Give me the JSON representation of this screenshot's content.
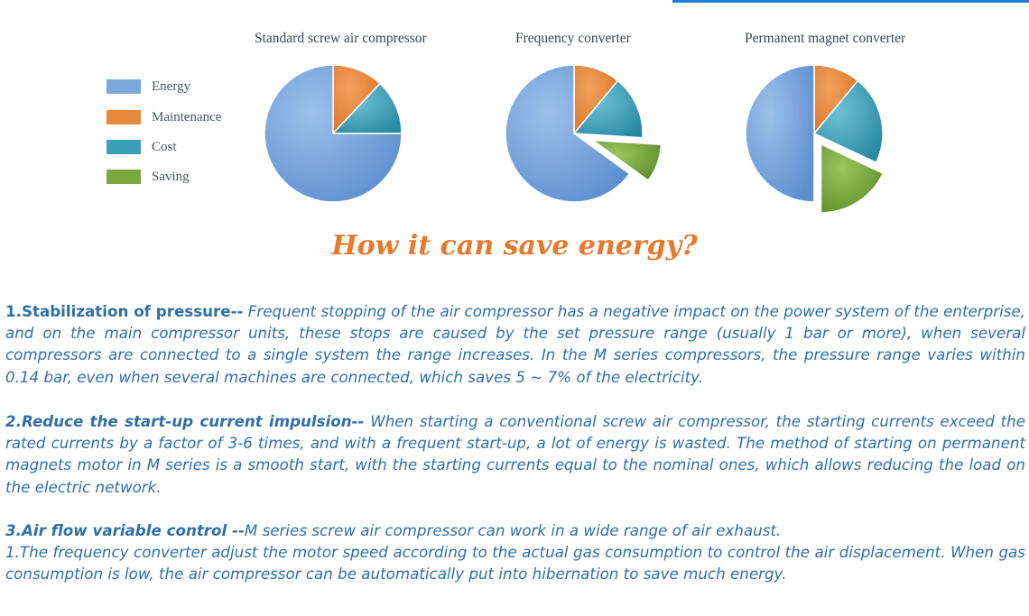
{
  "colors": {
    "energy": "#7ba7dc",
    "maintenance": "#e8893a",
    "cost": "#3aa0b8",
    "saving": "#7aa83e",
    "headline": "#e8782a",
    "body_text": "#2f6fa8"
  },
  "legend": [
    {
      "label": "Energy",
      "color": "#7ba7dc"
    },
    {
      "label": "Maintenance",
      "color": "#e8893a"
    },
    {
      "label": "Cost",
      "color": "#3aa0b8"
    },
    {
      "label": "Saving",
      "color": "#7aa83e"
    }
  ],
  "chart_data": [
    {
      "type": "pie",
      "title": "Standard screw air compressor",
      "series": [
        {
          "name": "Energy",
          "value": 75
        },
        {
          "name": "Maintenance",
          "value": 12
        },
        {
          "name": "Cost",
          "value": 13
        }
      ]
    },
    {
      "type": "pie",
      "title": "Frequency converter",
      "series": [
        {
          "name": "Energy",
          "value": 65
        },
        {
          "name": "Maintenance",
          "value": 11
        },
        {
          "name": "Cost",
          "value": 15
        },
        {
          "name": "Saving",
          "value": 9,
          "exploded": true
        }
      ]
    },
    {
      "type": "pie",
      "title": "Permanent magnet  converter",
      "series": [
        {
          "name": "Energy",
          "value": 50
        },
        {
          "name": "Maintenance",
          "value": 11
        },
        {
          "name": "Cost",
          "value": 21
        },
        {
          "name": "Saving",
          "value": 18,
          "exploded": true
        }
      ]
    }
  ],
  "headline": "How it can save energy?",
  "paragraphs": [
    {
      "head": "1.Stabilization of pressure--",
      "body": " Frequent stopping of the air compressor has a negative impact on the power system of the enterprise, and on the main compressor units, these stops are caused by the set pressure range (usually 1 bar or more), when several compressors are connected to a single system the range increases. In the M series compressors, the pressure range varies within 0.14 bar, even when several machines are connected, which saves 5 ~ 7% of the electricity."
    },
    {
      "head": "2.Reduce the start-up current impulsion--",
      "body": " When starting a conventional screw air compressor, the starting currents exceed the rated currents by a factor of 3-6 times, and with a frequent start-up, a lot of energy is wasted. The method of starting on permanent magnets motor in M series is a smooth start, with the starting currents equal to the nominal ones, which allows reducing the load on the electric network."
    },
    {
      "head": "3.Air flow variable control --",
      "body": "M series screw air compressor can work in a wide range of air exhaust.",
      "body2": "1.The frequency converter adjust the motor speed according to the actual gas consumption to control the air displacement. When gas consumption is low, the air compressor can be automatically put into hibernation to save much energy."
    }
  ]
}
